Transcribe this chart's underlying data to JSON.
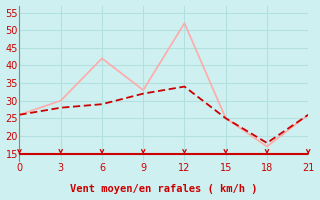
{
  "x_mean": [
    0,
    3,
    6,
    9,
    12,
    15,
    18,
    21
  ],
  "y_mean": [
    26,
    28,
    29,
    32,
    34,
    25,
    18,
    26
  ],
  "x_gust": [
    0,
    3,
    6,
    9,
    12,
    15,
    18,
    21
  ],
  "y_gust": [
    26,
    30,
    42,
    33,
    52,
    25,
    17,
    26
  ],
  "color_mean": "#cc0000",
  "color_gust": "#ffaaaa",
  "bg_color": "#cff0f0",
  "grid_color": "#b0e0e0",
  "axis_color": "#cc0000",
  "hline_color": "#cc0000",
  "xlabel": "Vent moyen/en rafales ( km/h )",
  "xlabel_fontsize": 7.5,
  "tick_fontsize": 7,
  "ylim": [
    13,
    57
  ],
  "xlim": [
    0,
    21
  ],
  "yticks": [
    15,
    20,
    25,
    30,
    35,
    40,
    45,
    50,
    55
  ],
  "xticks": [
    0,
    3,
    6,
    9,
    12,
    15,
    18,
    21
  ]
}
